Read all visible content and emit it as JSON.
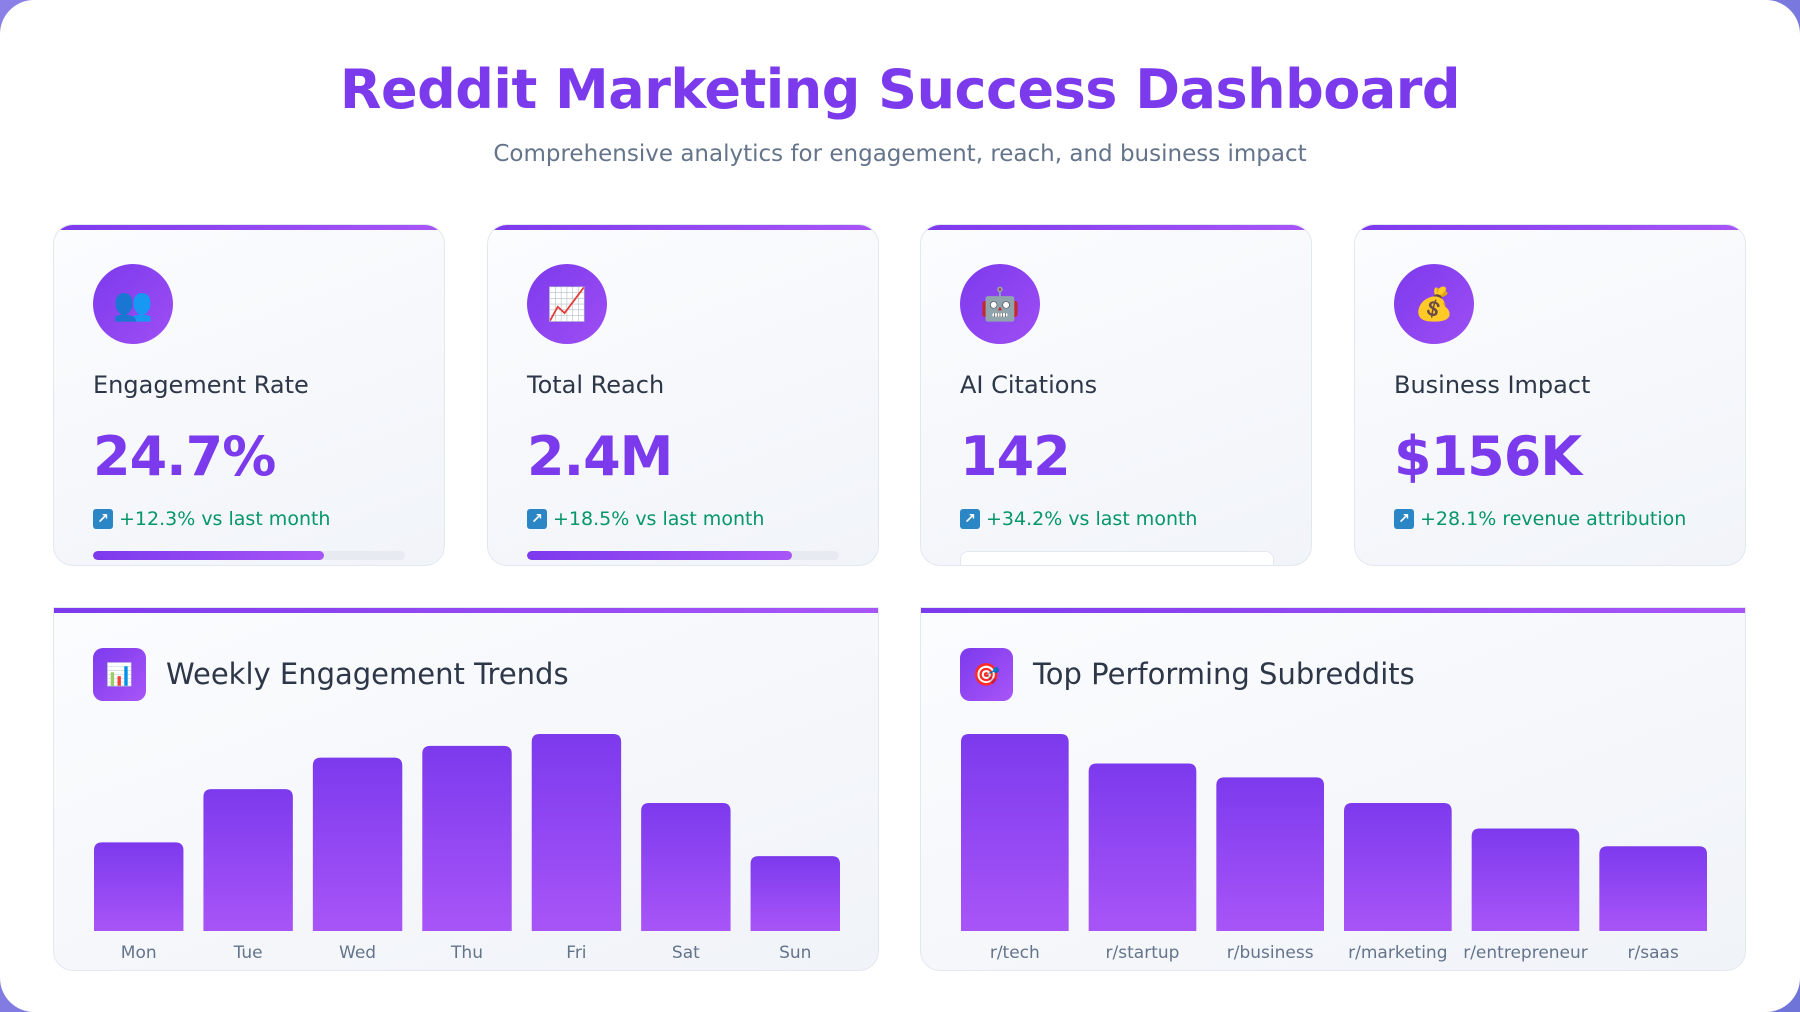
{
  "header": {
    "title": "Reddit Marketing Success Dashboard",
    "subtitle": "Comprehensive analytics for engagement, reach, and business impact"
  },
  "metrics": [
    {
      "icon": "users-icon",
      "glyph": "👥",
      "label": "Engagement Rate",
      "value": "24.7%",
      "change": "+12.3% vs last month",
      "progress": 0.74
    },
    {
      "icon": "trending-chart-icon",
      "glyph": "📈",
      "label": "Total Reach",
      "value": "2.4M",
      "change": "+18.5% vs last month",
      "progress": 0.85
    },
    {
      "icon": "robot-icon",
      "glyph": "🤖",
      "label": "AI Citations",
      "value": "142",
      "change": "+34.2% vs last month",
      "progress": null
    },
    {
      "icon": "money-bag-icon",
      "glyph": "💰",
      "label": "Business Impact",
      "value": "$156K",
      "change": "+28.1% revenue attribution",
      "progress": null
    }
  ],
  "colors": {
    "accent": "#7c3aed",
    "accent_light": "#a855f7",
    "positive": "#059669",
    "arrow": "#2b86c5"
  },
  "panels": {
    "weekly": {
      "title": "Weekly Engagement Trends",
      "icon": "bar-chart-icon",
      "glyph": "📊"
    },
    "subreddits": {
      "title": "Top Performing Subreddits",
      "icon": "target-icon",
      "glyph": "🎯"
    }
  },
  "chart_data": [
    {
      "type": "bar",
      "title": "Weekly Engagement Trends",
      "categories": [
        "Mon",
        "Tue",
        "Wed",
        "Thu",
        "Fri",
        "Sat",
        "Sun"
      ],
      "values": [
        45,
        72,
        88,
        94,
        100,
        65,
        38
      ],
      "ylim": [
        0,
        100
      ],
      "grid": false
    },
    {
      "type": "bar",
      "title": "Top Performing Subreddits",
      "categories": [
        "r/tech",
        "r/startup",
        "r/business",
        "r/marketing",
        "r/entrepreneur",
        "r/saas"
      ],
      "values": [
        100,
        85,
        78,
        65,
        52,
        43
      ],
      "ylim": [
        0,
        100
      ],
      "grid": false
    }
  ]
}
